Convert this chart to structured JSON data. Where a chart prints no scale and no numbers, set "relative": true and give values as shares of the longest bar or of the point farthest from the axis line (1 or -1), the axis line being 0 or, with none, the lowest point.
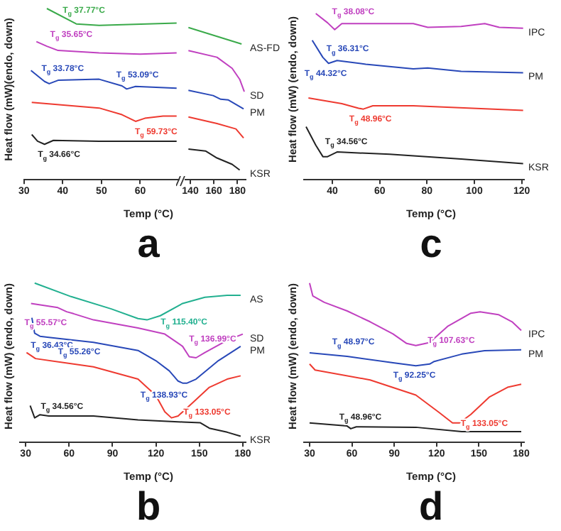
{
  "chart_data": [
    {
      "type": "line",
      "relative": true,
      "title": "a",
      "xlabel": "Temp (°C)",
      "ylabel": "Heat flow (mW)(endo, down)",
      "xlim": [
        30,
        70
      ],
      "xticks": [
        30,
        40,
        50,
        60
      ],
      "grid": false,
      "legend": false,
      "marker": "none",
      "line_style": "solid",
      "series": [
        {
          "color": "#3aaa4a",
          "x": [
            35.9,
            43.5,
            49.4,
            69.4
          ],
          "values": [
            1,
            0.91,
            0.902,
            0.915
          ]
        },
        {
          "color": "#c040c0",
          "x": [
            33.2,
            35.9,
            38.8,
            49.4,
            60,
            69.4
          ],
          "values": [
            0.807,
            0.78,
            0.755,
            0.741,
            0.734,
            0.741
          ]
        },
        {
          "color": "#2848b8",
          "x": [
            31.8,
            35.3,
            36.5,
            38.8,
            49.4,
            55.3,
            56.5,
            58.8,
            69.4
          ],
          "values": [
            0.638,
            0.574,
            0.561,
            0.581,
            0.587,
            0.548,
            0.53,
            0.545,
            0.535
          ]
        },
        {
          "color": "#ee3a30",
          "x": [
            32,
            49.4,
            55.3,
            58.8,
            61.2,
            65.9,
            69.4
          ],
          "values": [
            0.452,
            0.419,
            0.38,
            0.341,
            0.359,
            0.372,
            0.372
          ]
        },
        {
          "color": "#222222",
          "x": [
            32,
            33.5,
            35.3,
            37.6,
            49.4,
            69.4
          ],
          "values": [
            0.264,
            0.225,
            0.207,
            0.23,
            0.225,
            0.225
          ]
        }
      ],
      "annotations": [
        {
          "text": "T$_{g}$ 37.77°C",
          "x": 37.77,
          "y": 0.96
        },
        {
          "text": "T$_{g}$ 35.65°C",
          "x": 35.65,
          "y": 0.778
        },
        {
          "text": "T$_{g}$ 33.78°C",
          "x": 33.78,
          "y": 0.603
        },
        {
          "text": "T$_{g}$ 53.09°C",
          "x": 53.09,
          "y": 0.564
        },
        {
          "text": "T$_{g}$ 59.73°C",
          "x": 59.73,
          "y": 0.35
        },
        {
          "text": "T$_{g}$ 34.66°C",
          "x": 34.66,
          "y": 0.215
        }
      ]
    },
    {
      "type": "line",
      "relative": true,
      "xlim": [
        136,
        187
      ],
      "xticks": [
        140,
        160,
        180
      ],
      "grid": false,
      "legend": false,
      "marker": "none",
      "line_style": "solid",
      "series": [
        {
          "name": "AS-FD",
          "color": "#3aaa4a",
          "x": [
            138.4,
            183.5
          ],
          "values": [
            1,
            0.892
          ]
        },
        {
          "name": "SD",
          "color": "#c040c0",
          "x": [
            138.4,
            162.6,
            175.5,
            181.9,
            185.8
          ],
          "values": [
            0.849,
            0.805,
            0.732,
            0.66,
            0.579
          ]
        },
        {
          "name": "PM",
          "color": "#2848b8",
          "x": [
            138.4,
            159.4,
            165.8,
            172.3,
            185.2
          ],
          "values": [
            0.587,
            0.553,
            0.529,
            0.524,
            0.466
          ]
        },
        {
          "color": "#ee3a30",
          "x": [
            138.4,
            162.6,
            178.7,
            185.2
          ],
          "values": [
            0.413,
            0.369,
            0.334,
            0.274
          ]
        },
        {
          "name": "KSR",
          "color": "#222222",
          "x": [
            138.4,
            152.9,
            162.6,
            175.5,
            181.9
          ],
          "values": [
            0.201,
            0.189,
            0.143,
            0.101,
            0.064
          ]
        }
      ]
    },
    {
      "type": "line",
      "relative": true,
      "title": "c",
      "xlabel": "Temp (°C)",
      "ylabel": "Heat flow (mW) (endo, down)",
      "xlim": [
        28,
        121
      ],
      "xticks": [
        40,
        60,
        80,
        100,
        120
      ],
      "grid": false,
      "legend": false,
      "marker": "none",
      "line_style": "solid",
      "series": [
        {
          "name": "IPC",
          "color": "#c040c0",
          "x": [
            33,
            38,
            41,
            44,
            54.1,
            74.2,
            80.3,
            94.4,
            104.4,
            110.5,
            120.6
          ],
          "values": [
            1,
            0.944,
            0.903,
            0.939,
            0.939,
            0.939,
            0.917,
            0.922,
            0.939,
            0.917,
            0.912
          ]
        },
        {
          "name": "PM",
          "color": "#2848b8",
          "x": [
            31.5,
            36,
            38.4,
            42,
            54.1,
            74.2,
            80.3,
            94.4,
            120.6
          ],
          "values": [
            0.839,
            0.736,
            0.7,
            0.717,
            0.695,
            0.667,
            0.672,
            0.652,
            0.644
          ]
        },
        {
          "color": "#ee3a30",
          "x": [
            29.9,
            44,
            51.1,
            53.1,
            57.1,
            74.2,
            120.6
          ],
          "values": [
            0.492,
            0.458,
            0.43,
            0.425,
            0.445,
            0.445,
            0.417
          ]
        },
        {
          "name": "KSR",
          "color": "#222222",
          "x": [
            28.9,
            33,
            36,
            38,
            42,
            64.2,
            94.4,
            120.6
          ],
          "values": [
            0.319,
            0.208,
            0.139,
            0.139,
            0.167,
            0.153,
            0.125,
            0.097
          ]
        }
      ],
      "annotations": [
        {
          "text": "T$_{g}$ 38.08°C",
          "x": 38.08,
          "y": 0.937
        },
        {
          "text": "T$_{g}$ 36.31°C",
          "x": 36.31,
          "y": 0.738
        },
        {
          "text": "T$_{g}$ 44.32°C",
          "x": 44.32,
          "y": 0.711
        },
        {
          "text": "T$_{g}$ 48.96°C",
          "x": 48.96,
          "y": 0.436
        },
        {
          "text": "T$_{g}$ 34.56°C",
          "x": 34.56,
          "y": 0.233
        }
      ]
    },
    {
      "type": "line",
      "relative": true,
      "title": "b",
      "xlabel": "Temp (°C)",
      "ylabel": "Heat flow (mW) (endo, down)",
      "xlim": [
        26,
        182
      ],
      "xticks": [
        30,
        60,
        90,
        120,
        150,
        180
      ],
      "grid": false,
      "legend": false,
      "marker": "none",
      "line_style": "solid",
      "series": [
        {
          "name": "AS",
          "color": "#22b090",
          "x": [
            36.2,
            61.4,
            89.1,
            107.6,
            113.8,
            123,
            138.4,
            153.8,
            169.2,
            178.5
          ],
          "values": [
            1,
            0.915,
            0.838,
            0.777,
            0.769,
            0.795,
            0.872,
            0.911,
            0.923,
            0.923
          ]
        },
        {
          "name": "SD",
          "color": "#c040c0",
          "x": [
            33.7,
            52.2,
            58.3,
            63,
            76.8,
            107.6,
            126.1,
            138.4,
            143,
            147.7,
            153.8,
            169.2,
            180
          ],
          "values": [
            0.872,
            0.846,
            0.82,
            0.808,
            0.769,
            0.718,
            0.68,
            0.603,
            0.538,
            0.531,
            0.564,
            0.641,
            0.68
          ]
        },
        {
          "name": "PM",
          "color": "#2848b8",
          "x": [
            34.3,
            36.2,
            39.9,
            46,
            76.8,
            107.6,
            119.9,
            129.2,
            135.3,
            138.4,
            141.5,
            147.7,
            163.1,
            178.5
          ],
          "values": [
            0.782,
            0.685,
            0.666,
            0.659,
            0.628,
            0.577,
            0.513,
            0.449,
            0.385,
            0.372,
            0.372,
            0.397,
            0.513,
            0.603
          ]
        },
        {
          "color": "#ee3a30",
          "x": [
            30.6,
            36.8,
            76.8,
            107.6,
            119.9,
            126.1,
            130.7,
            135.3,
            144.6,
            156.9,
            169.2,
            178.5
          ],
          "values": [
            0.564,
            0.526,
            0.474,
            0.397,
            0.295,
            0.192,
            0.154,
            0.166,
            0.243,
            0.346,
            0.397,
            0.418
          ]
        },
        {
          "name": "KSR",
          "color": "#222222",
          "x": [
            33.1,
            36.2,
            39.9,
            46,
            76.8,
            107.6,
            138.4,
            150.7,
            156.9,
            169.2,
            178.5
          ],
          "values": [
            0.231,
            0.154,
            0.174,
            0.166,
            0.166,
            0.141,
            0.128,
            0.123,
            0.089,
            0.064,
            0.039
          ]
        }
      ],
      "annotations": [
        {
          "text": "T$_{g}$ 115.40°C",
          "x": 115.4,
          "y": 0.774
        },
        {
          "text": "T$_{g}$ 55.57°C",
          "x": 55.57,
          "y": 0.827
        },
        {
          "text": "T$_{g}$ 136.99°C",
          "x": 136.99,
          "y": 0.615
        },
        {
          "text": "T$_{g}$ 36.43°C",
          "x": 36.43,
          "y": 0.683
        },
        {
          "text": "T$_{g}$ 55.26°C",
          "x": 55.26,
          "y": 0.644
        },
        {
          "text": "T$_{g}$ 138.93°C",
          "x": 138.93,
          "y": 0.372
        },
        {
          "text": "T$_{g}$ 133.05°C",
          "x": 133.05,
          "y": 0.159
        },
        {
          "text": "T$_{g}$ 34.56°C",
          "x": 34.56,
          "y": 0.192
        }
      ]
    },
    {
      "type": "line",
      "relative": true,
      "title": "d",
      "xlabel": "Temp (°C)",
      "ylabel": "Heat flow (mW) (endo, down)",
      "xlim": [
        26,
        182
      ],
      "xticks": [
        30,
        60,
        90,
        120,
        150,
        180
      ],
      "grid": false,
      "legend": false,
      "marker": "none",
      "line_style": "solid",
      "series": [
        {
          "name": "IPC",
          "color": "#c040c0",
          "x": [
            30,
            32.3,
            40.4,
            56.6,
            72.9,
            89.1,
            98.8,
            105.3,
            115.1,
            128.1,
            144.3,
            150.8,
            163.8,
            173.5,
            180
          ],
          "values": [
            1,
            0.919,
            0.879,
            0.825,
            0.757,
            0.681,
            0.621,
            0.608,
            0.627,
            0.73,
            0.811,
            0.819,
            0.802,
            0.757,
            0.703
          ]
        },
        {
          "name": "PM",
          "color": "#2848b8",
          "x": [
            30,
            56.6,
            89.1,
            105.3,
            115.1,
            118.3,
            137.8,
            154,
            180
          ],
          "values": [
            0.562,
            0.54,
            0.5,
            0.481,
            0.492,
            0.508,
            0.554,
            0.576,
            0.581
          ]
        },
        {
          "color": "#ee3a30",
          "x": [
            30,
            33.9,
            72.9,
            105.3,
            121.6,
            131.3,
            136.2,
            144.3,
            157.3,
            170.3,
            180
          ],
          "values": [
            0.492,
            0.454,
            0.392,
            0.297,
            0.189,
            0.122,
            0.122,
            0.176,
            0.284,
            0.346,
            0.365
          ]
        },
        {
          "color": "#222222",
          "x": [
            30,
            56.6,
            59.2,
            63.1,
            105.3,
            137.8,
            180
          ],
          "values": [
            0.122,
            0.103,
            0.086,
            0.098,
            0.095,
            0.068,
            0.068
          ]
        }
      ],
      "annotations": [
        {
          "text": "T$_{g}$ 107.63°C",
          "x": 107.63,
          "y": 0.608
        },
        {
          "text": "T$_{g}$ 48.97°C",
          "x": 48.97,
          "y": 0.543
        },
        {
          "text": "T$_{g}$ 92.25°C",
          "x": 92.25,
          "y": 0.496
        },
        {
          "text": "T$_{g}$ 133.05°C",
          "x": 133.05,
          "y": 0.122
        },
        {
          "text": "T$_{g}$ 48.96°C",
          "x": 48.96,
          "y": 0.11
        }
      ]
    }
  ]
}
